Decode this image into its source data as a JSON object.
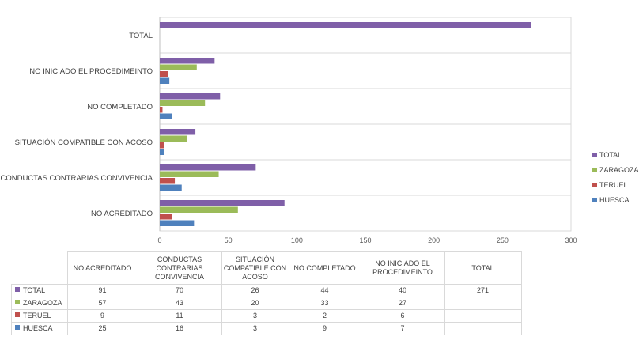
{
  "chart_data": {
    "type": "bar",
    "orientation": "horizontal",
    "categories": [
      "NO ACREDITADO",
      "CONDUCTAS CONTRARIAS CONVIVENCIA",
      "SITUACIÓN COMPATIBLE CON ACOSO",
      "NO COMPLETADO",
      "NO INICIADO EL PROCEDIMEINTO",
      "TOTAL"
    ],
    "table_headers": [
      "NO ACREDITADO",
      "CONDUCTAS CONTRARIAS CONVIVENCIA",
      "SITUACIÓN COMPATIBLE CON ACOSO",
      "NO COMPLETADO",
      "NO INICIADO EL PROCEDIMEINTO",
      "TOTAL"
    ],
    "series": [
      {
        "name": "TOTAL",
        "color": "#7f5fa8",
        "values": [
          91,
          70,
          26,
          44,
          40,
          271
        ]
      },
      {
        "name": "ZARAGOZA",
        "color": "#9bbb59",
        "values": [
          57,
          43,
          20,
          33,
          27,
          null
        ]
      },
      {
        "name": "TERUEL",
        "color": "#c0504d",
        "values": [
          9,
          11,
          3,
          2,
          6,
          null
        ]
      },
      {
        "name": "HUESCA",
        "color": "#4f81bd",
        "values": [
          25,
          16,
          3,
          9,
          7,
          null
        ]
      }
    ],
    "xlim": [
      0,
      300
    ],
    "xticks": [
      0,
      50,
      100,
      150,
      200,
      250,
      300
    ],
    "legend_order": [
      "TOTAL",
      "ZARAGOZA",
      "TERUEL",
      "HUESCA"
    ],
    "legend_position": "right",
    "grid": true,
    "title": "",
    "xlabel": "",
    "ylabel": ""
  }
}
